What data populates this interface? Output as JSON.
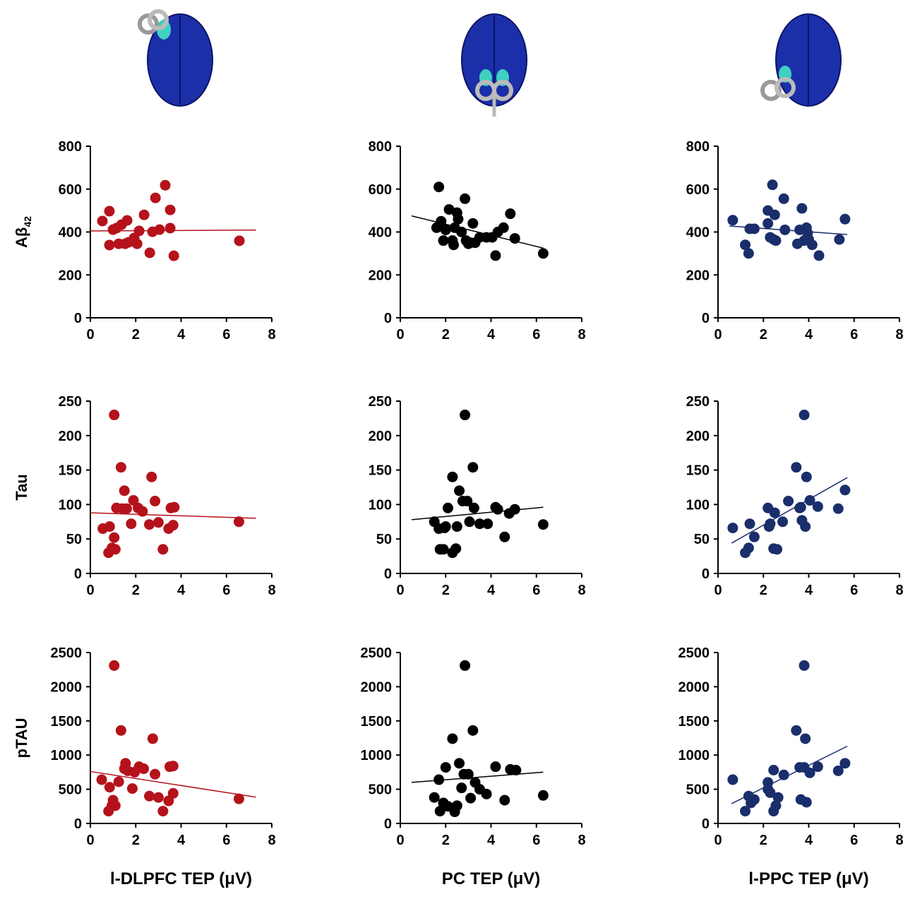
{
  "chart_data": [
    {
      "type": "scatter",
      "color": "#b5121b",
      "y_label": "Aβ",
      "y_label_subscript": "42",
      "x": [
        0.53,
        0.84,
        0.84,
        1.0,
        1.15,
        1.25,
        1.37,
        1.53,
        1.62,
        1.68,
        1.93,
        2.06,
        2.15,
        2.37,
        2.62,
        2.74,
        2.87,
        3.05,
        3.3,
        3.52,
        3.52,
        3.68,
        6.57
      ],
      "values": [
        451,
        497,
        339,
        411,
        418,
        345,
        434,
        345,
        454,
        352,
        372,
        345,
        405,
        480,
        303,
        401,
        559,
        411,
        618,
        503,
        418,
        289,
        359
      ],
      "trendline": {
        "x": [
          0,
          7.3
        ],
        "y": [
          405,
          409
        ]
      },
      "xlim": [
        0,
        8
      ],
      "xticks": [
        0,
        2,
        4,
        6,
        8
      ],
      "ylim": [
        0,
        800
      ],
      "yticks": [
        0,
        200,
        400,
        600,
        800
      ]
    },
    {
      "type": "scatter",
      "color": "#000000",
      "x": [
        1.6,
        1.7,
        1.8,
        1.9,
        2.0,
        2.15,
        2.3,
        2.35,
        2.4,
        2.5,
        2.55,
        2.7,
        2.85,
        2.9,
        3.0,
        3.1,
        3.2,
        3.3,
        3.5,
        3.8,
        4.05,
        4.2,
        4.3,
        4.55,
        4.85,
        5.05,
        6.3
      ],
      "values": [
        420,
        610,
        450,
        360,
        410,
        505,
        360,
        340,
        420,
        490,
        460,
        400,
        555,
        360,
        345,
        350,
        440,
        350,
        375,
        375,
        375,
        290,
        400,
        420,
        485,
        370,
        300
      ],
      "trendline": {
        "x": [
          0.5,
          6.3
        ],
        "y": [
          475,
          325
        ]
      },
      "xlim": [
        0,
        8
      ],
      "xticks": [
        0,
        2,
        4,
        6,
        8
      ],
      "ylim": [
        0,
        800
      ],
      "yticks": [
        0,
        200,
        400,
        600,
        800
      ]
    },
    {
      "type": "scatter",
      "color": "#1a2e6b",
      "x": [
        0.65,
        1.2,
        1.35,
        1.4,
        1.6,
        2.2,
        2.2,
        2.3,
        2.4,
        2.45,
        2.5,
        2.55,
        2.95,
        2.9,
        3.5,
        3.6,
        3.7,
        3.8,
        3.9,
        3.95,
        4.0,
        4.15,
        4.45,
        5.35,
        5.6
      ],
      "values": [
        455,
        340,
        300,
        415,
        415,
        500,
        440,
        375,
        620,
        365,
        480,
        360,
        410,
        555,
        345,
        410,
        510,
        360,
        420,
        395,
        365,
        340,
        290,
        365,
        460
      ],
      "trendline": {
        "x": [
          0.5,
          5.7
        ],
        "y": [
          428,
          388
        ]
      },
      "xlim": [
        0,
        8
      ],
      "xticks": [
        0,
        2,
        4,
        6,
        8
      ],
      "ylim": [
        0,
        800
      ],
      "yticks": [
        0,
        200,
        400,
        600,
        800
      ]
    },
    {
      "type": "scatter",
      "color": "#b5121b",
      "y_label": "Tau",
      "x": [
        0.55,
        0.8,
        0.85,
        0.95,
        1.05,
        1.1,
        1.15,
        1.05,
        1.35,
        1.4,
        1.5,
        1.6,
        1.8,
        1.9,
        2.1,
        2.3,
        2.6,
        2.7,
        2.85,
        3.0,
        3.2,
        3.45,
        3.55,
        3.65,
        3.7,
        6.55
      ],
      "values": [
        65,
        30,
        68,
        37,
        52,
        35,
        95,
        230,
        154,
        94,
        120,
        94,
        72,
        106,
        95,
        90,
        71,
        140,
        105,
        74,
        35,
        65,
        95,
        70,
        96,
        75
      ],
      "trendline": {
        "x": [
          0,
          7.3
        ],
        "y": [
          88,
          80
        ]
      },
      "xlim": [
        0,
        8
      ],
      "xticks": [
        0,
        2,
        4,
        6,
        8
      ],
      "ylim": [
        0,
        250
      ],
      "yticks": [
        0,
        50,
        100,
        150,
        200,
        250
      ]
    },
    {
      "type": "scatter",
      "color": "#000000",
      "x": [
        1.5,
        1.7,
        1.75,
        1.9,
        1.95,
        2.0,
        2.1,
        2.3,
        2.3,
        2.45,
        2.5,
        2.6,
        2.75,
        2.85,
        2.95,
        3.05,
        3.2,
        3.25,
        3.5,
        3.85,
        4.2,
        4.3,
        4.6,
        4.8,
        5.05,
        6.3
      ],
      "values": [
        75,
        65,
        35,
        35,
        66,
        68,
        95,
        140,
        30,
        36,
        68,
        120,
        105,
        230,
        105,
        75,
        154,
        95,
        72,
        72,
        96,
        93,
        53,
        87,
        93,
        71
      ],
      "trendline": {
        "x": [
          0.5,
          6.3
        ],
        "y": [
          78,
          96
        ]
      },
      "xlim": [
        0,
        8
      ],
      "xticks": [
        0,
        2,
        4,
        6,
        8
      ],
      "ylim": [
        0,
        250
      ],
      "yticks": [
        0,
        50,
        100,
        150,
        200,
        250
      ]
    },
    {
      "type": "scatter",
      "color": "#1a2e6b",
      "x": [
        0.65,
        1.2,
        1.35,
        1.4,
        1.6,
        2.2,
        2.25,
        2.3,
        2.45,
        2.5,
        2.6,
        2.85,
        3.1,
        3.45,
        3.6,
        3.65,
        3.7,
        3.8,
        3.85,
        3.9,
        4.05,
        4.4,
        5.3,
        5.6
      ],
      "values": [
        66,
        30,
        37,
        72,
        53,
        95,
        68,
        72,
        36,
        88,
        35,
        75,
        105,
        154,
        95,
        96,
        77,
        230,
        68,
        140,
        106,
        97,
        94,
        121
      ],
      "trendline": {
        "x": [
          0.6,
          5.7
        ],
        "y": [
          44,
          139
        ]
      },
      "xlim": [
        0,
        8
      ],
      "xticks": [
        0,
        2,
        4,
        6,
        8
      ],
      "ylim": [
        0,
        250
      ],
      "yticks": [
        0,
        50,
        100,
        150,
        200,
        250
      ]
    },
    {
      "type": "scatter",
      "color": "#b5121b",
      "y_label": "pTAU",
      "x_label": "l-DLPFC TEP (μV)",
      "x": [
        0.5,
        0.8,
        0.85,
        0.95,
        1.0,
        1.1,
        1.25,
        1.05,
        1.35,
        1.5,
        1.55,
        1.65,
        1.85,
        1.95,
        2.15,
        2.35,
        2.6,
        2.75,
        2.85,
        3.0,
        3.2,
        3.45,
        3.5,
        3.65,
        3.65,
        6.55
      ],
      "values": [
        640,
        180,
        530,
        260,
        340,
        260,
        610,
        2310,
        1360,
        800,
        880,
        770,
        510,
        750,
        830,
        800,
        400,
        1240,
        720,
        380,
        180,
        330,
        830,
        840,
        440,
        360
      ],
      "trendline": {
        "x": [
          0,
          7.3
        ],
        "y": [
          760,
          385
        ]
      },
      "xlim": [
        0,
        8
      ],
      "xticks": [
        0,
        2,
        4,
        6,
        8
      ],
      "ylim": [
        0,
        2500
      ],
      "yticks": [
        0,
        500,
        1000,
        1500,
        2000,
        2500
      ]
    },
    {
      "type": "scatter",
      "color": "#000000",
      "x_label": "PC TEP (μV)",
      "x": [
        1.5,
        1.7,
        1.75,
        1.9,
        2.0,
        2.1,
        2.3,
        2.4,
        2.5,
        2.6,
        2.7,
        2.8,
        2.85,
        3.0,
        3.1,
        3.2,
        3.3,
        3.5,
        3.8,
        4.2,
        4.6,
        4.85,
        5.1,
        6.3
      ],
      "values": [
        380,
        640,
        180,
        300,
        820,
        250,
        1240,
        170,
        260,
        880,
        520,
        720,
        2310,
        720,
        370,
        1360,
        600,
        500,
        430,
        830,
        340,
        790,
        780,
        410
      ],
      "trendline": {
        "x": [
          0.5,
          6.3
        ],
        "y": [
          600,
          750
        ]
      },
      "xlim": [
        0,
        8
      ],
      "xticks": [
        0,
        2,
        4,
        6,
        8
      ],
      "ylim": [
        0,
        2500
      ],
      "yticks": [
        0,
        500,
        1000,
        1500,
        2000,
        2500
      ]
    },
    {
      "type": "scatter",
      "color": "#1a2e6b",
      "x_label": "l-PPC TEP (μV)",
      "x": [
        0.65,
        1.2,
        1.35,
        1.45,
        1.6,
        2.2,
        2.2,
        2.3,
        2.45,
        2.45,
        2.55,
        2.65,
        2.9,
        3.45,
        3.6,
        3.65,
        3.8,
        3.8,
        3.85,
        3.9,
        4.05,
        4.4,
        5.3,
        5.6
      ],
      "values": [
        640,
        180,
        400,
        300,
        350,
        600,
        500,
        450,
        180,
        780,
        260,
        380,
        710,
        1360,
        820,
        350,
        2310,
        820,
        1240,
        310,
        740,
        830,
        770,
        880
      ],
      "trendline": {
        "x": [
          0.6,
          5.7
        ],
        "y": [
          290,
          1130
        ]
      },
      "xlim": [
        0,
        8
      ],
      "xticks": [
        0,
        2,
        4,
        6,
        8
      ],
      "ylim": [
        0,
        2500
      ],
      "yticks": [
        0,
        500,
        1000,
        1500,
        2000,
        2500
      ]
    }
  ]
}
